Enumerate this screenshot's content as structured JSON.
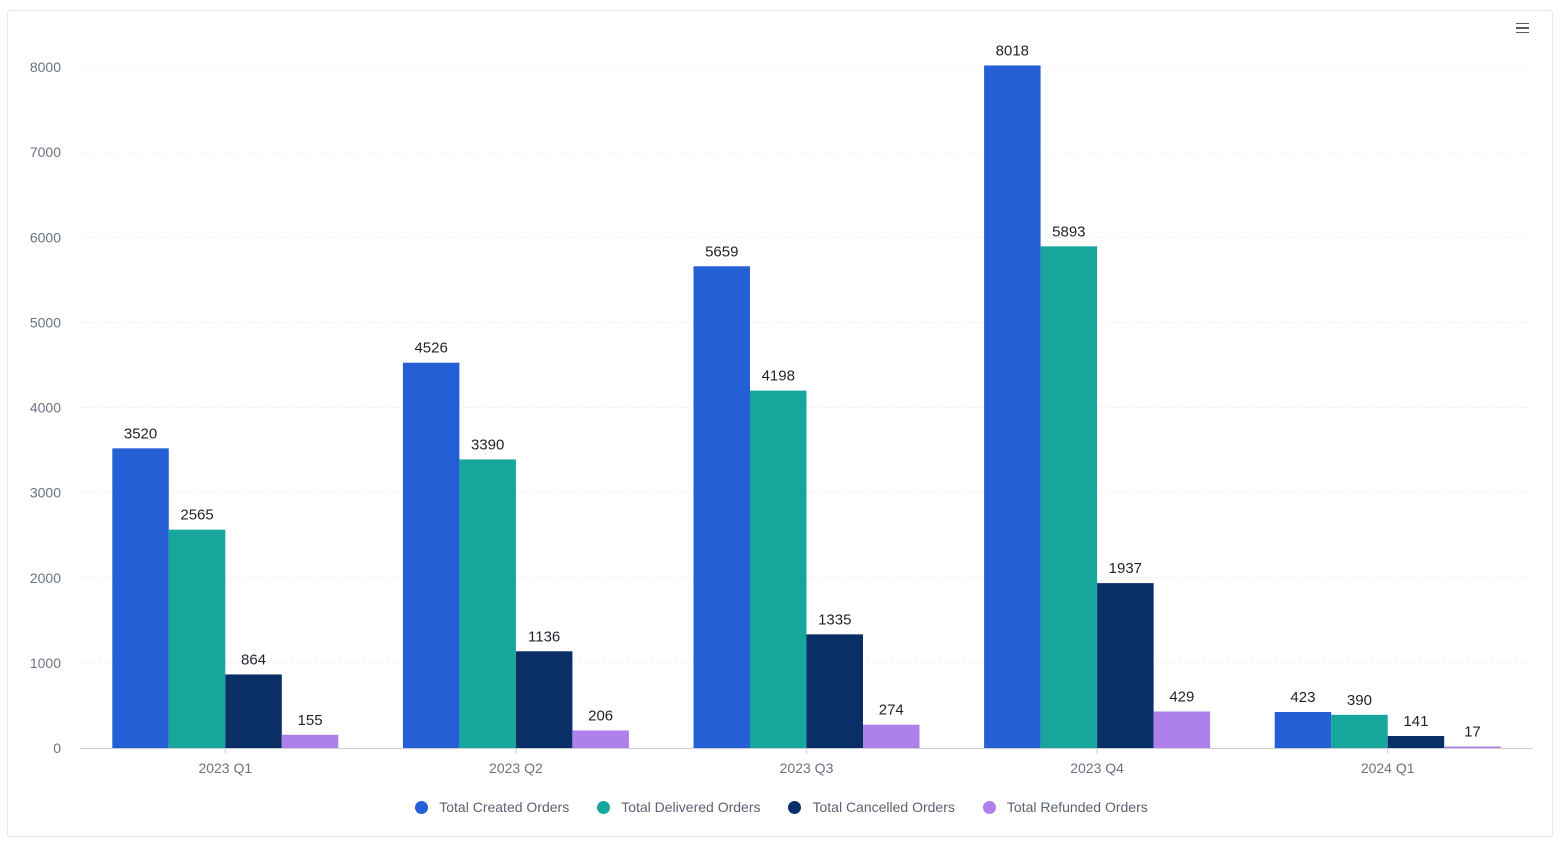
{
  "toolbar": {
    "menu_icon": "hamburger-menu-icon"
  },
  "chart_data": {
    "type": "bar",
    "title": "",
    "xlabel": "",
    "ylabel": "",
    "categories": [
      "2023 Q1",
      "2023 Q2",
      "2023 Q3",
      "2023 Q4",
      "2024 Q1"
    ],
    "ylim": [
      0,
      8000
    ],
    "yticks": [
      "0",
      "1000",
      "2000",
      "3000",
      "4000",
      "5000",
      "6000",
      "7000",
      "8000"
    ],
    "grid": true,
    "legend_position": "bottom-center",
    "data_labels": true,
    "series": [
      {
        "name": "Total Created Orders",
        "color": "#245fd5",
        "values": [
          3520,
          4526,
          5659,
          8018,
          423
        ]
      },
      {
        "name": "Total Delivered Orders",
        "color": "#17a69b",
        "values": [
          2565,
          3390,
          4198,
          5893,
          390
        ]
      },
      {
        "name": "Total Cancelled Orders",
        "color": "#0a2f66",
        "values": [
          864,
          1136,
          1335,
          1937,
          141
        ]
      },
      {
        "name": "Total Refunded Orders",
        "color": "#ad80ea",
        "values": [
          155,
          206,
          274,
          429,
          17
        ]
      }
    ]
  }
}
